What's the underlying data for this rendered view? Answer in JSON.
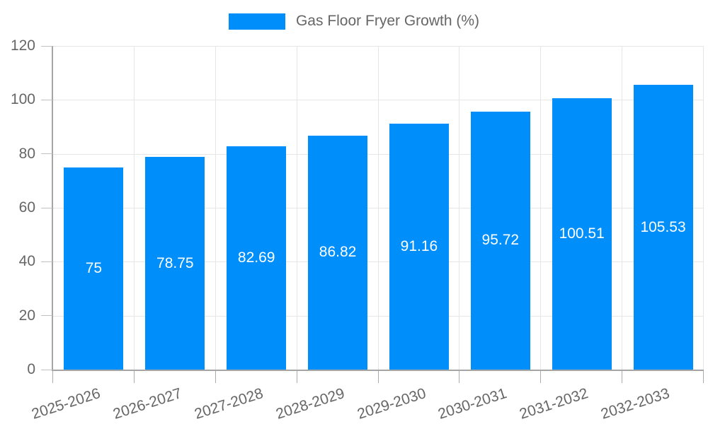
{
  "chart_data": {
    "type": "bar",
    "title": "",
    "legend": {
      "label": "Gas Floor Fryer Growth (%)",
      "position": "top-center"
    },
    "categories": [
      "2025-2026",
      "2026-2027",
      "2027-2028",
      "2028-2029",
      "2029-2030",
      "2030-2031",
      "2031-2032",
      "2032-2033"
    ],
    "values": [
      75,
      78.75,
      82.69,
      86.82,
      91.16,
      95.72,
      100.51,
      105.53
    ],
    "value_labels": [
      "75",
      "78.75",
      "82.69",
      "86.82",
      "91.16",
      "95.72",
      "100.51",
      "105.53"
    ],
    "xlabel": "",
    "ylabel": "",
    "ylim": [
      0,
      120
    ],
    "yticks": [
      0,
      20,
      40,
      60,
      80,
      100,
      120
    ],
    "grid": true,
    "colors": {
      "bar": "#008FFA",
      "value_label": "#ffffff",
      "axis_text": "#666666",
      "grid_line": "#e6e6e6",
      "axis_line": "#a5a5a5"
    }
  }
}
